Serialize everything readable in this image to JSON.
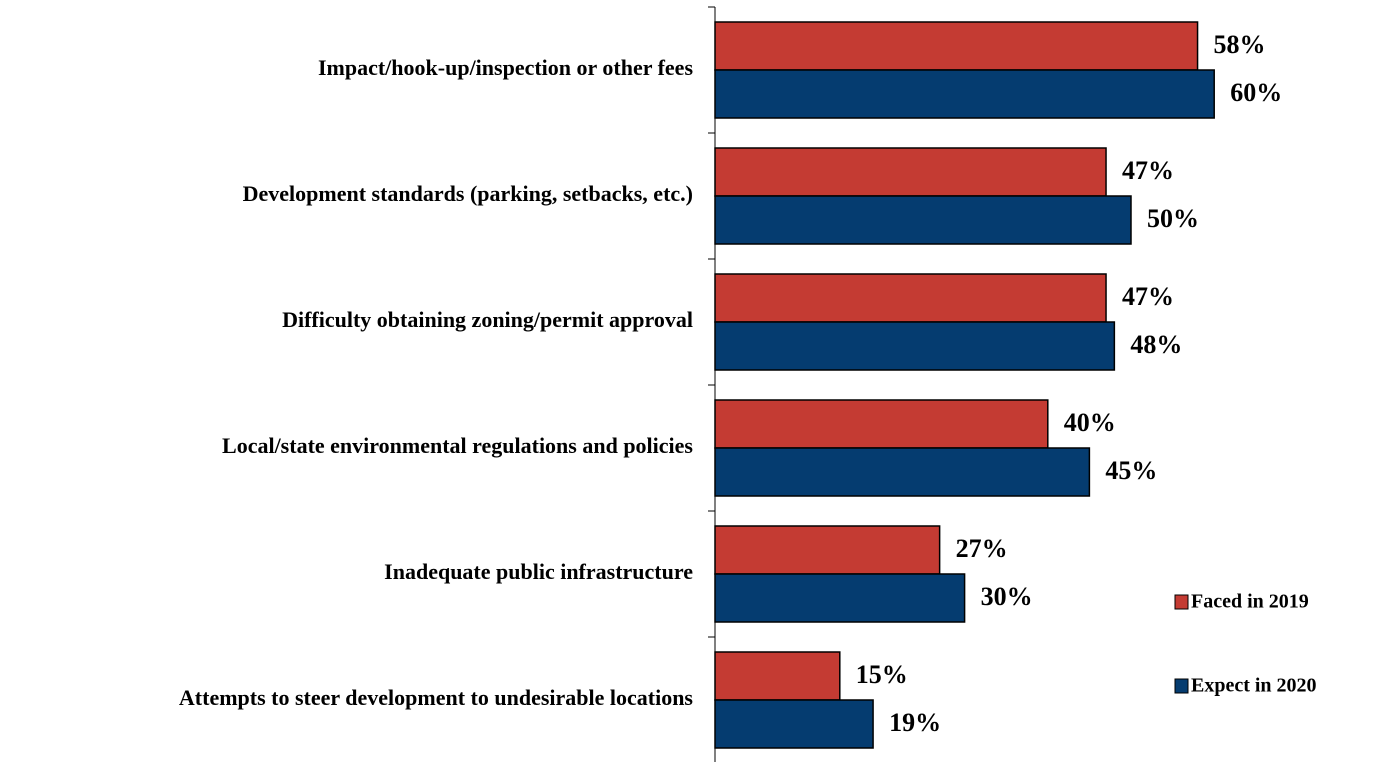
{
  "chart_data": {
    "type": "bar",
    "orientation": "horizontal",
    "categories": [
      "Impact/hook-up/inspection or other fees",
      "Development standards (parking, setbacks, etc.)",
      "Difficulty obtaining zoning/permit approval",
      "Local/state environmental regulations and policies",
      "Inadequate public infrastructure",
      "Attempts to steer development to undesirable locations"
    ],
    "series": [
      {
        "name": "Faced in 2019",
        "color": "#c43b33",
        "values": [
          58,
          47,
          47,
          40,
          27,
          15
        ],
        "value_labels": [
          "58%",
          "47%",
          "47%",
          "40%",
          "27%",
          "15%"
        ]
      },
      {
        "name": "Expect in 2020",
        "color": "#053c70",
        "values": [
          60,
          50,
          48,
          45,
          30,
          19
        ],
        "value_labels": [
          "60%",
          "50%",
          "48%",
          "45%",
          "30%",
          "19%"
        ]
      }
    ],
    "legend": "lower right"
  }
}
